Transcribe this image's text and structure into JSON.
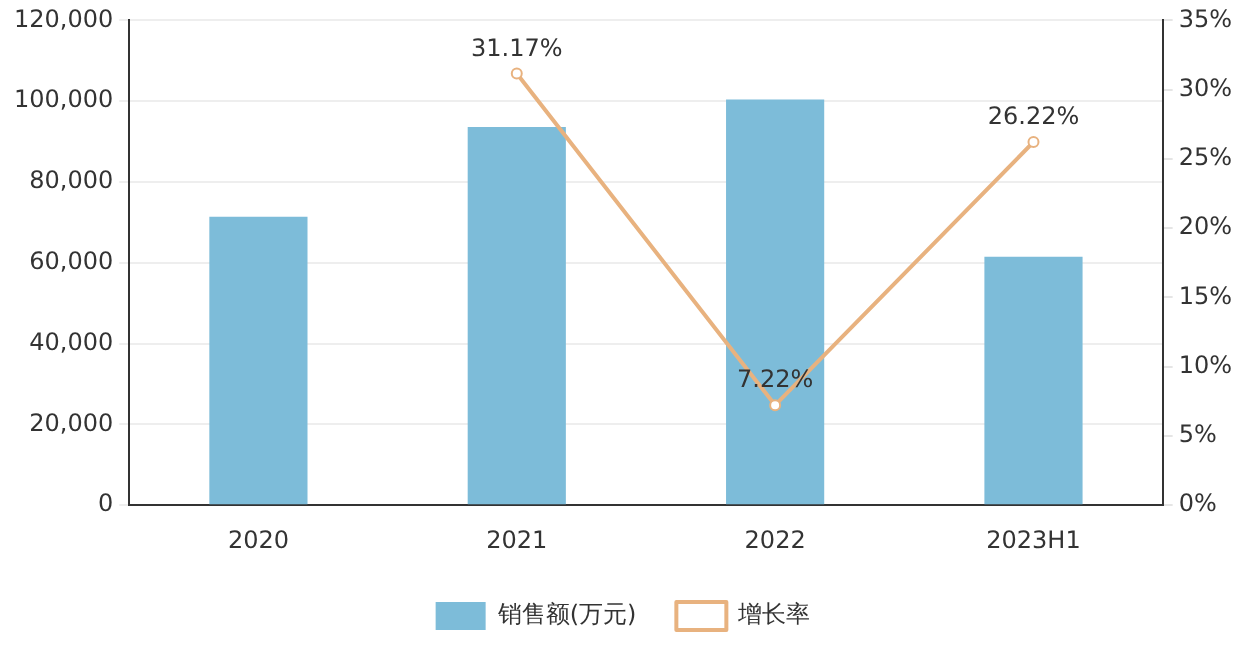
{
  "chart_data": {
    "type": "bar",
    "categories": [
      "2020",
      "2021",
      "2022",
      "2023H1"
    ],
    "series": [
      {
        "name": "销售额(万元)",
        "color": "#7dbcd9",
        "values": [
          71400,
          93600,
          100400,
          61500
        ]
      },
      {
        "name": "增长率",
        "type": "line",
        "axis": "y2",
        "color": "#e8b27f",
        "marker": "circle",
        "values": [
          null,
          31.17,
          7.22,
          26.22
        ],
        "value_labels": [
          null,
          "31.17%",
          "7.22%",
          "26.22%"
        ]
      }
    ],
    "ylim": [
      0,
      120000
    ],
    "yticks": [
      {
        "value": 0,
        "label": "0"
      },
      {
        "value": 20000,
        "label": "20,000"
      },
      {
        "value": 40000,
        "label": "40,000"
      },
      {
        "value": 60000,
        "label": "60,000"
      },
      {
        "value": 80000,
        "label": "80,000"
      },
      {
        "value": 100000,
        "label": "100,000"
      },
      {
        "value": 120000,
        "label": "120,000"
      }
    ],
    "y2lim": [
      0,
      35
    ],
    "y2ticks": [
      {
        "value": 0,
        "label": "0%"
      },
      {
        "value": 5,
        "label": "5%"
      },
      {
        "value": 10,
        "label": "10%"
      },
      {
        "value": 15,
        "label": "15%"
      },
      {
        "value": 20,
        "label": "20%"
      },
      {
        "value": 25,
        "label": "25%"
      },
      {
        "value": 30,
        "label": "30%"
      },
      {
        "value": 35,
        "label": "35%"
      }
    ],
    "grid": "y",
    "legend": "bottom"
  }
}
